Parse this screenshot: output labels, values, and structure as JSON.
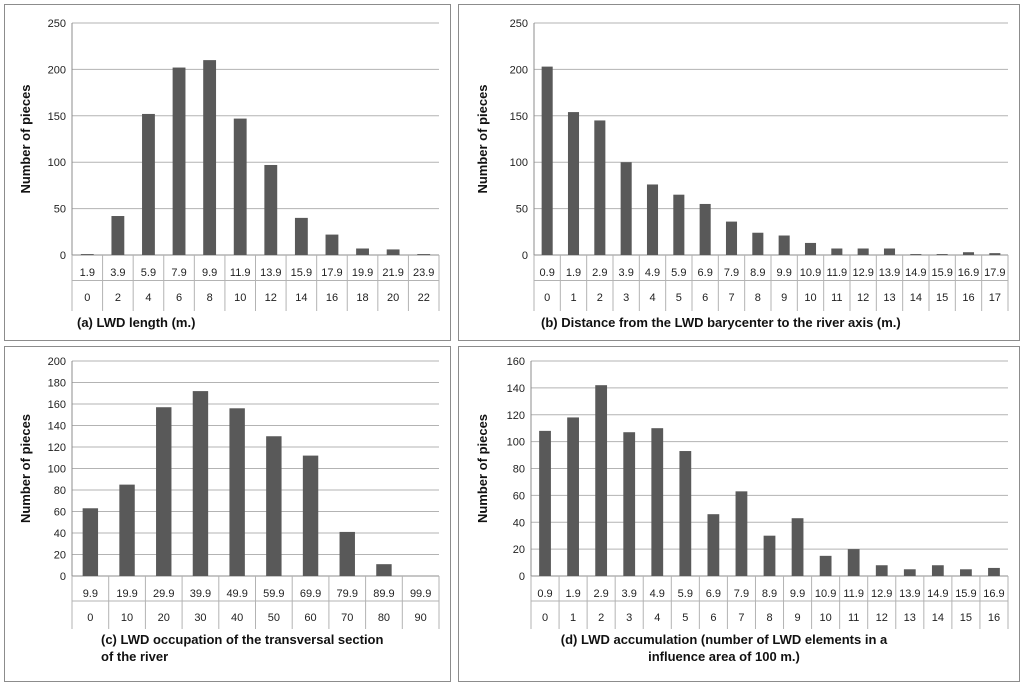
{
  "colors": {
    "bar": "#595959",
    "grid": "#b3b3b3",
    "axis": "#8c8c8c",
    "border": "#8c8c8c",
    "text": "#222222"
  },
  "chart_data": [
    {
      "id": "a",
      "type": "bar",
      "title": "(a) LWD length (m.)",
      "ylabel": "Number of pieces",
      "ylim": [
        0,
        250
      ],
      "yticks": [
        0,
        50,
        100,
        150,
        200,
        250
      ],
      "categories_top": [
        "1.9",
        "3.9",
        "5.9",
        "7.9",
        "9.9",
        "11.9",
        "13.9",
        "15.9",
        "17.9",
        "19.9",
        "21.9",
        "23.9"
      ],
      "categories_bottom": [
        "0",
        "2",
        "4",
        "6",
        "8",
        "10",
        "12",
        "14",
        "16",
        "18",
        "20",
        "22"
      ],
      "values": [
        1,
        42,
        152,
        202,
        210,
        147,
        97,
        40,
        22,
        7,
        6,
        1
      ]
    },
    {
      "id": "b",
      "type": "bar",
      "title": "(b) Distance from the LWD barycenter to the river axis (m.)",
      "ylabel": "Number of pieces",
      "ylim": [
        0,
        250
      ],
      "yticks": [
        0,
        50,
        100,
        150,
        200,
        250
      ],
      "categories_top": [
        "0.9",
        "1.9",
        "2.9",
        "3.9",
        "4.9",
        "5.9",
        "6.9",
        "7.9",
        "8.9",
        "9.9",
        "10.9",
        "11.9",
        "12.9",
        "13.9",
        "14.9",
        "15.9",
        "16.9",
        "17.9"
      ],
      "categories_bottom": [
        "0",
        "1",
        "2",
        "3",
        "4",
        "5",
        "6",
        "7",
        "8",
        "9",
        "10",
        "11",
        "12",
        "13",
        "14",
        "15",
        "16",
        "17"
      ],
      "values": [
        203,
        154,
        145,
        100,
        76,
        65,
        55,
        36,
        24,
        21,
        13,
        7,
        7,
        7,
        1,
        1,
        3,
        2
      ]
    },
    {
      "id": "c",
      "type": "bar",
      "title_lines": [
        "(c) LWD occupation of the transversal section",
        "of the river"
      ],
      "ylabel": "Number of pieces",
      "ylim": [
        0,
        200
      ],
      "yticks": [
        0,
        20,
        40,
        60,
        80,
        100,
        120,
        140,
        160,
        180,
        200
      ],
      "categories_top": [
        "9.9",
        "19.9",
        "29.9",
        "39.9",
        "49.9",
        "59.9",
        "69.9",
        "79.9",
        "89.9",
        "99.9"
      ],
      "categories_bottom": [
        "0",
        "10",
        "20",
        "30",
        "40",
        "50",
        "60",
        "70",
        "80",
        "90"
      ],
      "values": [
        63,
        85,
        157,
        172,
        156,
        130,
        112,
        41,
        11,
        0
      ]
    },
    {
      "id": "d",
      "type": "bar",
      "title_lines": [
        "(d) LWD accumulation (number of LWD elements in a",
        "influence area of 100 m.)"
      ],
      "ylabel": "Number of pieces",
      "ylim": [
        0,
        160
      ],
      "yticks": [
        0,
        20,
        40,
        60,
        80,
        100,
        120,
        140,
        160
      ],
      "categories_top": [
        "0.9",
        "1.9",
        "2.9",
        "3.9",
        "4.9",
        "5.9",
        "6.9",
        "7.9",
        "8.9",
        "9.9",
        "10.9",
        "11.9",
        "12.9",
        "13.9",
        "14.9",
        "15.9",
        "16.9"
      ],
      "categories_bottom": [
        "0",
        "1",
        "2",
        "3",
        "4",
        "5",
        "6",
        "7",
        "8",
        "9",
        "10",
        "11",
        "12",
        "13",
        "14",
        "15",
        "16"
      ],
      "values": [
        108,
        118,
        142,
        107,
        110,
        93,
        46,
        63,
        30,
        43,
        15,
        20,
        8,
        5,
        8,
        5,
        6
      ]
    }
  ]
}
